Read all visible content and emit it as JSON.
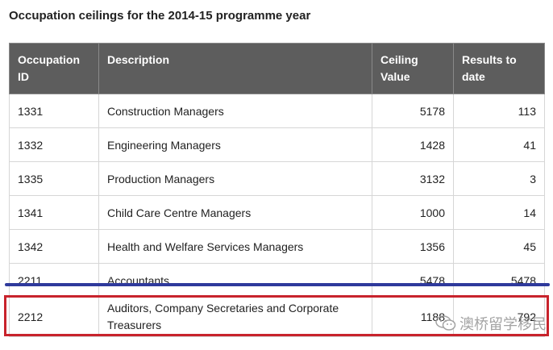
{
  "caption": "Occupation ceilings for the 2014-15 programme year",
  "table": {
    "headers": {
      "id": "Occupation ID",
      "description": "Description",
      "ceiling": "Ceiling Value",
      "results": "Results to date"
    },
    "rows": [
      {
        "id": "1331",
        "description": "Construction Managers",
        "ceiling": "5178",
        "results": "113"
      },
      {
        "id": "1332",
        "description": "Engineering Managers",
        "ceiling": "1428",
        "results": "41"
      },
      {
        "id": "1335",
        "description": "Production Managers",
        "ceiling": "3132",
        "results": "3"
      },
      {
        "id": "1341",
        "description": "Child Care Centre Managers",
        "ceiling": "1000",
        "results": "14"
      },
      {
        "id": "1342",
        "description": "Health and Welfare Services Managers",
        "ceiling": "1356",
        "results": "45"
      },
      {
        "id": "2211",
        "description": "Accountants",
        "ceiling": "5478",
        "results": "5478"
      },
      {
        "id": "2212",
        "description": "Auditors, Company Secretaries and Corporate Treasurers",
        "ceiling": "1188",
        "results": "792"
      }
    ]
  },
  "annotations": {
    "underline_color": "#2f3a9c",
    "box_color": "#c8232c"
  },
  "watermark": {
    "text": "澳桥留学移民",
    "icon": "wechat-icon"
  }
}
